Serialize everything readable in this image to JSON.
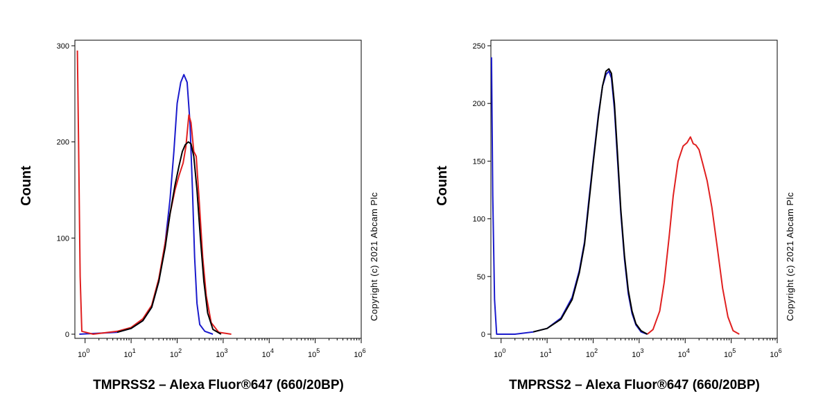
{
  "chart_data": [
    {
      "type": "line",
      "xlabel": "TMPRSS2 – Alexa Fluor®647 (660/20BP)",
      "ylabel": "Count",
      "copyright": "Copyright (c) 2021 Abcam Plc",
      "x_scale": "log",
      "xlim": [
        0.6,
        1000000
      ],
      "ylim": [
        0,
        300
      ],
      "x_ticks": [
        {
          "value": 1,
          "base": "10",
          "exp": "0"
        },
        {
          "value": 10,
          "base": "10",
          "exp": "1"
        },
        {
          "value": 100,
          "base": "10",
          "exp": "2"
        },
        {
          "value": 1000,
          "base": "10",
          "exp": "3"
        },
        {
          "value": 10000,
          "base": "10",
          "exp": "4"
        },
        {
          "value": 100000,
          "base": "10",
          "exp": "5"
        },
        {
          "value": 1000000,
          "base": "10",
          "exp": "6"
        }
      ],
      "y_ticks": [
        {
          "value": 0,
          "label": "0"
        },
        {
          "value": 100,
          "label": "100"
        },
        {
          "value": 200,
          "label": "200"
        },
        {
          "value": 300,
          "label": "300"
        }
      ],
      "series": [
        {
          "color": "#1a1acc",
          "points": [
            [
              0.75,
              0
            ],
            [
              5,
              2
            ],
            [
              10,
              6
            ],
            [
              18,
              14
            ],
            [
              28,
              28
            ],
            [
              40,
              55
            ],
            [
              55,
              95
            ],
            [
              70,
              140
            ],
            [
              85,
              190
            ],
            [
              100,
              240
            ],
            [
              120,
              262
            ],
            [
              140,
              270
            ],
            [
              165,
              262
            ],
            [
              190,
              220
            ],
            [
              215,
              150
            ],
            [
              240,
              80
            ],
            [
              270,
              32
            ],
            [
              310,
              10
            ],
            [
              400,
              3
            ],
            [
              600,
              0
            ]
          ]
        },
        {
          "color": "#e01f1f",
          "points": [
            [
              0.68,
              295
            ],
            [
              0.72,
              200
            ],
            [
              0.78,
              60
            ],
            [
              0.85,
              3
            ],
            [
              1.5,
              0
            ],
            [
              5,
              3
            ],
            [
              10,
              7
            ],
            [
              18,
              16
            ],
            [
              28,
              30
            ],
            [
              40,
              58
            ],
            [
              55,
              95
            ],
            [
              70,
              125
            ],
            [
              90,
              150
            ],
            [
              110,
              165
            ],
            [
              135,
              178
            ],
            [
              155,
              195
            ],
            [
              180,
              228
            ],
            [
              200,
              220
            ],
            [
              230,
              190
            ],
            [
              260,
              185
            ],
            [
              300,
              140
            ],
            [
              360,
              80
            ],
            [
              430,
              40
            ],
            [
              550,
              12
            ],
            [
              800,
              2
            ],
            [
              1500,
              0
            ]
          ]
        },
        {
          "color": "#000000",
          "points": [
            [
              5,
              2
            ],
            [
              10,
              6
            ],
            [
              18,
              14
            ],
            [
              28,
              28
            ],
            [
              40,
              55
            ],
            [
              55,
              90
            ],
            [
              70,
              125
            ],
            [
              90,
              155
            ],
            [
              110,
              175
            ],
            [
              130,
              190
            ],
            [
              150,
              197
            ],
            [
              175,
              200
            ],
            [
              200,
              198
            ],
            [
              230,
              185
            ],
            [
              270,
              150
            ],
            [
              320,
              100
            ],
            [
              380,
              55
            ],
            [
              460,
              22
            ],
            [
              600,
              5
            ],
            [
              900,
              0
            ]
          ]
        }
      ]
    },
    {
      "type": "line",
      "xlabel": "TMPRSS2 – Alexa Fluor®647 (660/20BP)",
      "ylabel": "Count",
      "copyright": "Copyright (c) 2021 Abcam Plc",
      "x_scale": "log",
      "xlim": [
        0.6,
        1000000
      ],
      "ylim": [
        0,
        250
      ],
      "x_ticks": [
        {
          "value": 1,
          "base": "10",
          "exp": "0"
        },
        {
          "value": 10,
          "base": "10",
          "exp": "1"
        },
        {
          "value": 100,
          "base": "10",
          "exp": "2"
        },
        {
          "value": 1000,
          "base": "10",
          "exp": "3"
        },
        {
          "value": 10000,
          "base": "10",
          "exp": "4"
        },
        {
          "value": 100000,
          "base": "10",
          "exp": "5"
        },
        {
          "value": 1000000,
          "base": "10",
          "exp": "6"
        }
      ],
      "y_ticks": [
        {
          "value": 0,
          "label": "0"
        },
        {
          "value": 50,
          "label": "50"
        },
        {
          "value": 100,
          "label": "100"
        },
        {
          "value": 150,
          "label": "150"
        },
        {
          "value": 200,
          "label": "200"
        },
        {
          "value": 250,
          "label": "250"
        }
      ],
      "series": [
        {
          "color": "#1a1acc",
          "points": [
            [
              0.62,
              240
            ],
            [
              0.66,
              120
            ],
            [
              0.72,
              30
            ],
            [
              0.8,
              0
            ],
            [
              2,
              0
            ],
            [
              5,
              2
            ],
            [
              10,
              5
            ],
            [
              20,
              14
            ],
            [
              35,
              32
            ],
            [
              50,
              55
            ],
            [
              65,
              80
            ],
            [
              80,
              115
            ],
            [
              100,
              150
            ],
            [
              130,
              190
            ],
            [
              160,
              215
            ],
            [
              190,
              225
            ],
            [
              220,
              228
            ],
            [
              250,
              222
            ],
            [
              290,
              195
            ],
            [
              340,
              150
            ],
            [
              400,
              105
            ],
            [
              480,
              65
            ],
            [
              580,
              35
            ],
            [
              700,
              18
            ],
            [
              850,
              8
            ],
            [
              1100,
              2
            ],
            [
              1500,
              0
            ]
          ]
        },
        {
          "color": "#e01f1f",
          "points": [
            [
              1500,
              0
            ],
            [
              2000,
              4
            ],
            [
              2800,
              20
            ],
            [
              3500,
              45
            ],
            [
              4500,
              85
            ],
            [
              5500,
              120
            ],
            [
              7000,
              150
            ],
            [
              9000,
              163
            ],
            [
              11000,
              166
            ],
            [
              13000,
              171
            ],
            [
              15000,
              165
            ],
            [
              17000,
              164
            ],
            [
              20000,
              160
            ],
            [
              24000,
              148
            ],
            [
              30000,
              133
            ],
            [
              38000,
              110
            ],
            [
              50000,
              75
            ],
            [
              65000,
              40
            ],
            [
              85000,
              15
            ],
            [
              110000,
              3
            ],
            [
              150000,
              0
            ]
          ]
        },
        {
          "color": "#000000",
          "points": [
            [
              5,
              2
            ],
            [
              10,
              5
            ],
            [
              20,
              13
            ],
            [
              35,
              30
            ],
            [
              50,
              53
            ],
            [
              65,
              78
            ],
            [
              80,
              112
            ],
            [
              100,
              148
            ],
            [
              130,
              188
            ],
            [
              160,
              215
            ],
            [
              190,
              228
            ],
            [
              220,
              230
            ],
            [
              250,
              226
            ],
            [
              290,
              200
            ],
            [
              340,
              155
            ],
            [
              400,
              108
            ],
            [
              480,
              68
            ],
            [
              580,
              38
            ],
            [
              700,
              20
            ],
            [
              850,
              9
            ],
            [
              1100,
              3
            ],
            [
              1500,
              0
            ]
          ]
        }
      ]
    }
  ]
}
